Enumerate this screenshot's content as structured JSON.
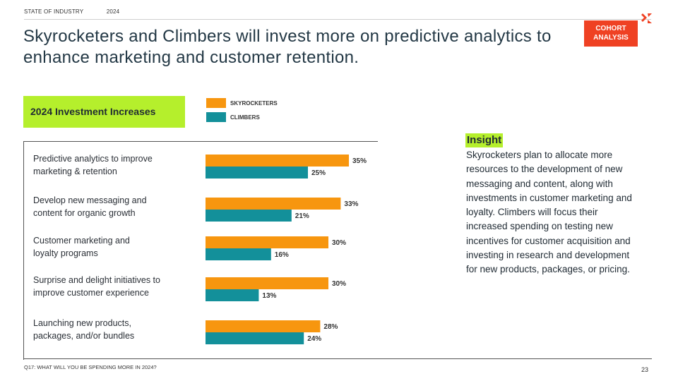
{
  "header": {
    "section": "STATE OF INDUSTRY",
    "year": "2024",
    "title": "Skyrocketers and Climbers will invest more on predictive analytics to enhance marketing and customer retention.",
    "badge_line1": "COHORT",
    "badge_line2": "ANALYSIS"
  },
  "colors": {
    "skyrocketers": "#f7960f",
    "climbers": "#13909a",
    "accent": "#b5ef2c",
    "badge": "#ef4123"
  },
  "chart_data": {
    "type": "bar",
    "orientation": "horizontal",
    "title": "2024 Investment Increases",
    "categories": [
      "Predictive analytics to improve\nmarketing & retention",
      "Develop new messaging and\ncontent for organic growth",
      "Customer marketing and\nloyalty programs",
      "Surprise and delight initiatives to\nimprove customer experience",
      "Launching new products,\npackages, and/or bundles"
    ],
    "series": [
      {
        "name": "SKYROCKETERS",
        "values": [
          35,
          33,
          30,
          30,
          28
        ],
        "labels": [
          "35%",
          "33%",
          "30%",
          "30%",
          "28%"
        ]
      },
      {
        "name": "CLIMBERS",
        "values": [
          25,
          21,
          16,
          13,
          24
        ],
        "labels": [
          "25%",
          "21%",
          "16%",
          "13%",
          "24%"
        ]
      }
    ],
    "xlim": [
      0,
      40
    ],
    "legend": "top"
  },
  "insight": {
    "title": "Insight",
    "body": "Skyrocketers plan to allocate more resources to the development of new messaging and content, along with investments in customer marketing and loyalty. Climbers will focus their increased spending on testing new incentives for customer acquisition and investing in research and development for new products, packages, or pricing."
  },
  "footer": {
    "question": "Q17: WHAT WILL YOU BE SPENDING MORE IN 2024?",
    "page": "23"
  }
}
